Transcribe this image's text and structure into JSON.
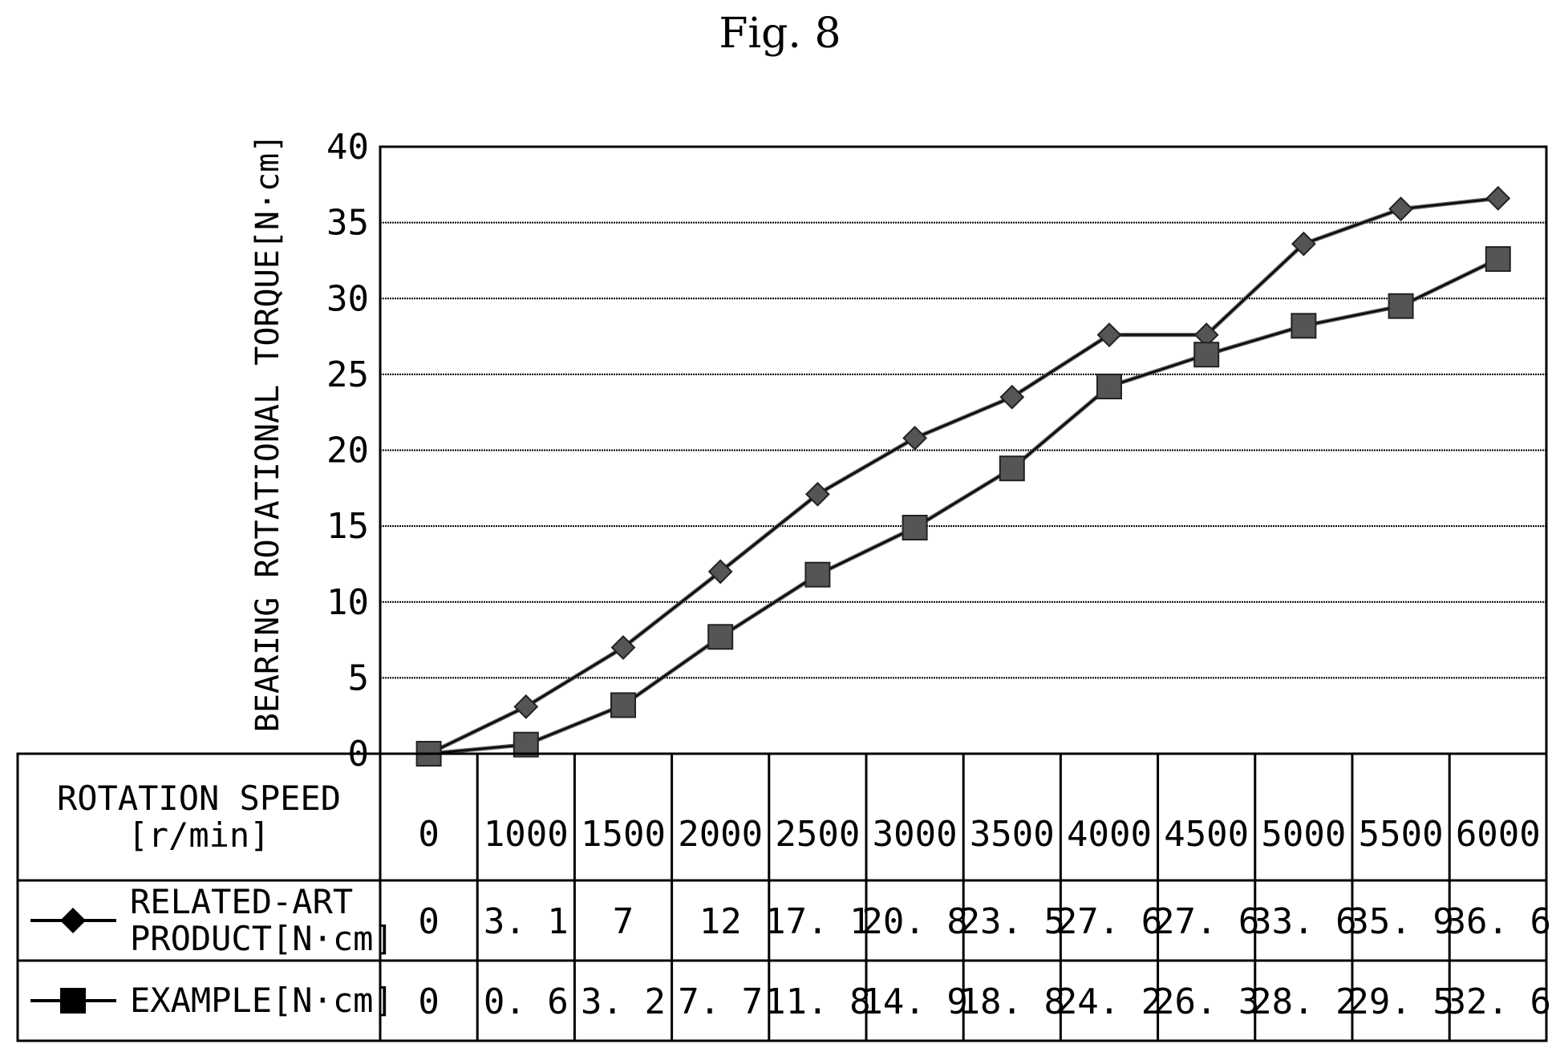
{
  "figure": {
    "title": "Fig. 8"
  },
  "chart_data": {
    "type": "line",
    "title": "",
    "xlabel": "ROTATION SPEED [r/min]",
    "ylabel": "BEARING ROTATIONAL TORQUE[N·cm]",
    "ylim": [
      0,
      40
    ],
    "yticks": [
      0,
      5,
      10,
      15,
      20,
      25,
      30,
      35,
      40
    ],
    "grid": true,
    "x": [
      0,
      1000,
      1500,
      2000,
      2500,
      3000,
      3500,
      4000,
      4500,
      5000,
      5500,
      6000
    ],
    "x_labels": [
      "0",
      "1000",
      "1500",
      "2000",
      "2500",
      "3000",
      "3500",
      "4000",
      "4500",
      "5000",
      "5500",
      "6000"
    ],
    "series": [
      {
        "name": "RELATED-ART PRODUCT[N·cm]",
        "name_lines": [
          "RELATED-ART",
          "PRODUCT[N·cm]"
        ],
        "marker": "diamond",
        "values": [
          0,
          3.1,
          7,
          12,
          17.1,
          20.8,
          23.5,
          27.6,
          27.6,
          33.6,
          35.9,
          36.6
        ],
        "value_labels": [
          "0",
          "3. 1",
          "7",
          "12",
          "17. 1",
          "20. 8",
          "23. 5",
          "27. 6",
          "27. 6",
          "33. 6",
          "35. 9",
          "36. 6"
        ]
      },
      {
        "name": "EXAMPLE[N·cm]",
        "name_lines": [
          "EXAMPLE[N·cm]"
        ],
        "marker": "square",
        "values": [
          0,
          0.6,
          3.2,
          7.7,
          11.8,
          14.9,
          18.8,
          24.2,
          26.3,
          28.2,
          29.5,
          32.6
        ],
        "value_labels": [
          "0",
          "0. 6",
          "3. 2",
          "7. 7",
          "11. 8",
          "14. 9",
          "18. 8",
          "24. 2",
          "26. 3",
          "28. 2",
          "29. 5",
          "32. 6"
        ]
      }
    ],
    "table_header_lines": [
      "ROTATION SPEED",
      "[r/min]"
    ],
    "colors": {
      "line": "#000000",
      "marker": "#555555",
      "grid": "#000000"
    }
  }
}
